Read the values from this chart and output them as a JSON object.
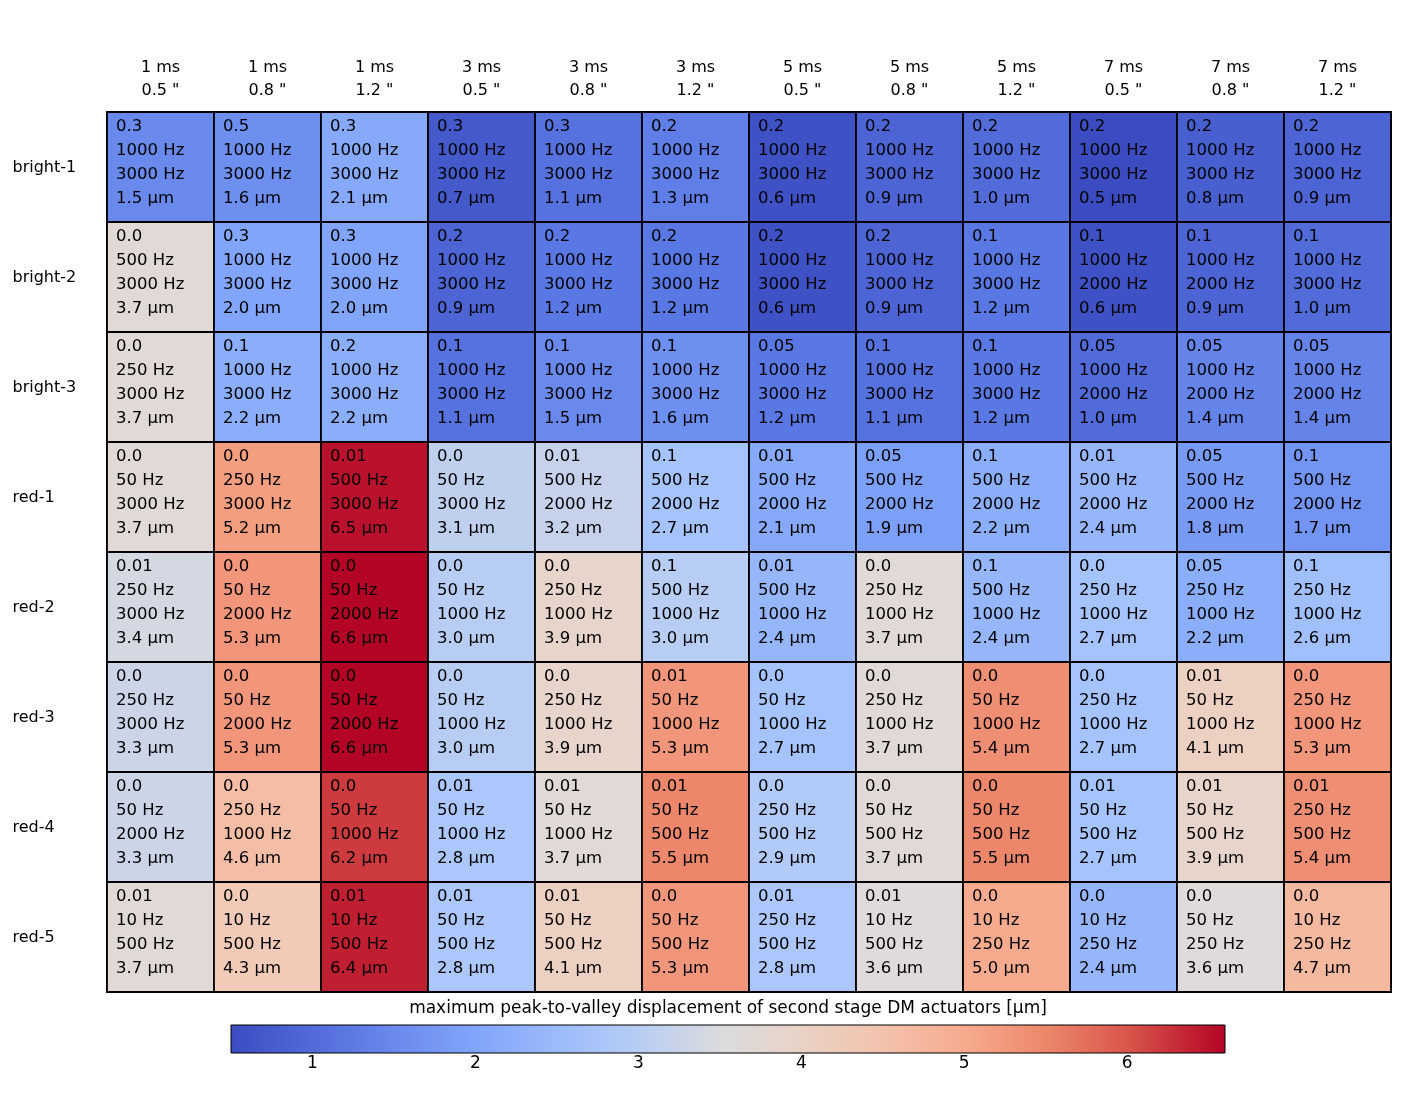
{
  "chart_data": {
    "type": "heatmap",
    "categories": [
      "1 ms\n0.5 \"",
      "1 ms\n0.8 \"",
      "1 ms\n1.2 \"",
      "3 ms\n0.5 \"",
      "3 ms\n0.8 \"",
      "3 ms\n1.2 \"",
      "5 ms\n0.5 \"",
      "5 ms\n0.8 \"",
      "5 ms\n1.2 \"",
      "7 ms\n0.5 \"",
      "7 ms\n0.8 \"",
      "7 ms\n1.2 \""
    ],
    "y_categories": [
      "bright-1",
      "bright-2",
      "bright-3",
      "red-1",
      "red-2",
      "red-3",
      "red-4",
      "red-5"
    ],
    "cells": [
      [
        1.5,
        1.6,
        2.1,
        0.7,
        1.1,
        1.3,
        0.6,
        0.9,
        1.0,
        0.5,
        0.8,
        0.9
      ],
      [
        3.7,
        2.0,
        2.0,
        0.9,
        1.2,
        1.2,
        0.6,
        0.9,
        1.2,
        0.6,
        0.9,
        1.0
      ],
      [
        3.7,
        2.2,
        2.2,
        1.1,
        1.5,
        1.6,
        1.2,
        1.1,
        1.2,
        1.0,
        1.4,
        1.4
      ],
      [
        3.7,
        5.2,
        6.5,
        3.1,
        3.2,
        2.7,
        2.1,
        1.9,
        2.2,
        2.4,
        1.8,
        1.7
      ],
      [
        3.4,
        5.3,
        6.6,
        3.0,
        3.9,
        3.0,
        2.4,
        3.7,
        2.4,
        2.7,
        2.2,
        2.6
      ],
      [
        3.3,
        5.3,
        6.6,
        3.0,
        3.9,
        5.3,
        2.7,
        3.7,
        5.4,
        2.7,
        4.1,
        5.3
      ],
      [
        3.3,
        4.6,
        6.2,
        2.8,
        3.7,
        5.5,
        2.9,
        3.7,
        5.5,
        2.7,
        3.9,
        5.4
      ],
      [
        3.7,
        4.3,
        6.4,
        2.8,
        4.1,
        5.3,
        2.8,
        3.6,
        5.0,
        2.4,
        3.6,
        4.7
      ]
    ],
    "cell_labels": [
      [
        "0.3\n1000 Hz\n3000 Hz\n1.5 µm",
        "0.5\n1000 Hz\n3000 Hz\n1.6 µm",
        "0.3\n1000 Hz\n3000 Hz\n2.1 µm",
        "0.3\n1000 Hz\n3000 Hz\n0.7 µm",
        "0.3\n1000 Hz\n3000 Hz\n1.1 µm",
        "0.2\n1000 Hz\n3000 Hz\n1.3 µm",
        "0.2\n1000 Hz\n3000 Hz\n0.6 µm",
        "0.2\n1000 Hz\n3000 Hz\n0.9 µm",
        "0.2\n1000 Hz\n3000 Hz\n1.0 µm",
        "0.2\n1000 Hz\n3000 Hz\n0.5 µm",
        "0.2\n1000 Hz\n3000 Hz\n0.8 µm",
        "0.2\n1000 Hz\n3000 Hz\n0.9 µm"
      ],
      [
        "0.0\n500 Hz\n3000 Hz\n3.7 µm",
        "0.3\n1000 Hz\n3000 Hz\n2.0 µm",
        "0.3\n1000 Hz\n3000 Hz\n2.0 µm",
        "0.2\n1000 Hz\n3000 Hz\n0.9 µm",
        "0.2\n1000 Hz\n3000 Hz\n1.2 µm",
        "0.2\n1000 Hz\n3000 Hz\n1.2 µm",
        "0.2\n1000 Hz\n3000 Hz\n0.6 µm",
        "0.2\n1000 Hz\n3000 Hz\n0.9 µm",
        "0.1\n1000 Hz\n3000 Hz\n1.2 µm",
        "0.1\n1000 Hz\n2000 Hz\n0.6 µm",
        "0.1\n1000 Hz\n2000 Hz\n0.9 µm",
        "0.1\n1000 Hz\n3000 Hz\n1.0 µm"
      ],
      [
        "0.0\n250 Hz\n3000 Hz\n3.7 µm",
        "0.1\n1000 Hz\n3000 Hz\n2.2 µm",
        "0.2\n1000 Hz\n3000 Hz\n2.2 µm",
        "0.1\n1000 Hz\n3000 Hz\n1.1 µm",
        "0.1\n1000 Hz\n3000 Hz\n1.5 µm",
        "0.1\n1000 Hz\n3000 Hz\n1.6 µm",
        "0.05\n1000 Hz\n3000 Hz\n1.2 µm",
        "0.1\n1000 Hz\n3000 Hz\n1.1 µm",
        "0.1\n1000 Hz\n3000 Hz\n1.2 µm",
        "0.05\n1000 Hz\n2000 Hz\n1.0 µm",
        "0.05\n1000 Hz\n2000 Hz\n1.4 µm",
        "0.05\n1000 Hz\n2000 Hz\n1.4 µm"
      ],
      [
        "0.0\n50 Hz\n3000 Hz\n3.7 µm",
        "0.0\n250 Hz\n3000 Hz\n5.2 µm",
        "0.01\n500 Hz\n3000 Hz\n6.5 µm",
        "0.0\n50 Hz\n3000 Hz\n3.1 µm",
        "0.01\n500 Hz\n2000 Hz\n3.2 µm",
        "0.1\n500 Hz\n2000 Hz\n2.7 µm",
        "0.01\n500 Hz\n2000 Hz\n2.1 µm",
        "0.05\n500 Hz\n2000 Hz\n1.9 µm",
        "0.1\n500 Hz\n2000 Hz\n2.2 µm",
        "0.01\n500 Hz\n2000 Hz\n2.4 µm",
        "0.05\n500 Hz\n2000 Hz\n1.8 µm",
        "0.1\n500 Hz\n2000 Hz\n1.7 µm"
      ],
      [
        "0.01\n250 Hz\n3000 Hz\n3.4 µm",
        "0.0\n50 Hz\n2000 Hz\n5.3 µm",
        "0.0\n50 Hz\n2000 Hz\n6.6 µm",
        "0.0\n50 Hz\n1000 Hz\n3.0 µm",
        "0.0\n250 Hz\n1000 Hz\n3.9 µm",
        "0.1\n500 Hz\n1000 Hz\n3.0 µm",
        "0.01\n500 Hz\n1000 Hz\n2.4 µm",
        "0.0\n250 Hz\n1000 Hz\n3.7 µm",
        "0.1\n500 Hz\n1000 Hz\n2.4 µm",
        "0.0\n250 Hz\n1000 Hz\n2.7 µm",
        "0.05\n250 Hz\n1000 Hz\n2.2 µm",
        "0.1\n250 Hz\n1000 Hz\n2.6 µm"
      ],
      [
        "0.0\n250 Hz\n3000 Hz\n3.3 µm",
        "0.0\n50 Hz\n2000 Hz\n5.3 µm",
        "0.0\n50 Hz\n2000 Hz\n6.6 µm",
        "0.0\n50 Hz\n1000 Hz\n3.0 µm",
        "0.0\n250 Hz\n1000 Hz\n3.9 µm",
        "0.01\n50 Hz\n1000 Hz\n5.3 µm",
        "0.0\n50 Hz\n1000 Hz\n2.7 µm",
        "0.0\n250 Hz\n1000 Hz\n3.7 µm",
        "0.0\n50 Hz\n1000 Hz\n5.4 µm",
        "0.0\n250 Hz\n1000 Hz\n2.7 µm",
        "0.01\n50 Hz\n1000 Hz\n4.1 µm",
        "0.0\n250 Hz\n1000 Hz\n5.3 µm"
      ],
      [
        "0.0\n50 Hz\n2000 Hz\n3.3 µm",
        "0.0\n250 Hz\n1000 Hz\n4.6 µm",
        "0.0\n50 Hz\n1000 Hz\n6.2 µm",
        "0.01\n50 Hz\n1000 Hz\n2.8 µm",
        "0.01\n50 Hz\n1000 Hz\n3.7 µm",
        "0.01\n50 Hz\n500 Hz\n5.5 µm",
        "0.0\n250 Hz\n500 Hz\n2.9 µm",
        "0.0\n50 Hz\n500 Hz\n3.7 µm",
        "0.0\n50 Hz\n500 Hz\n5.5 µm",
        "0.01\n50 Hz\n500 Hz\n2.7 µm",
        "0.01\n50 Hz\n500 Hz\n3.9 µm",
        "0.01\n250 Hz\n500 Hz\n5.4 µm"
      ],
      [
        "0.01\n10 Hz\n500 Hz\n3.7 µm",
        "0.0\n10 Hz\n500 Hz\n4.3 µm",
        "0.01\n10 Hz\n500 Hz\n6.4 µm",
        "0.01\n50 Hz\n500 Hz\n2.8 µm",
        "0.01\n50 Hz\n500 Hz\n4.1 µm",
        "0.0\n50 Hz\n500 Hz\n5.3 µm",
        "0.01\n250 Hz\n500 Hz\n2.8 µm",
        "0.01\n10 Hz\n500 Hz\n3.6 µm",
        "0.0\n10 Hz\n250 Hz\n5.0 µm",
        "0.0\n10 Hz\n250 Hz\n2.4 µm",
        "0.0\n50 Hz\n250 Hz\n3.6 µm",
        "0.0\n10 Hz\n250 Hz\n4.7 µm"
      ]
    ],
    "clabel": "maximum peak-to-valley displacement of second stage DM actuators [µm]",
    "clim": [
      0.5,
      6.6
    ],
    "cticks": [
      1,
      2,
      3,
      4,
      5,
      6
    ]
  }
}
